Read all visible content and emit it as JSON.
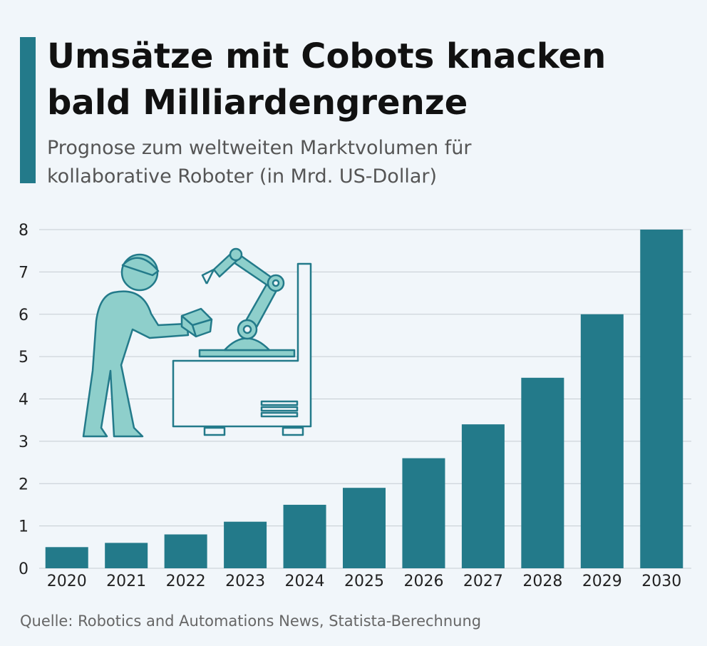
{
  "chart_data": {
    "type": "bar",
    "title": [
      "Umsätze mit Cobots knacken",
      "bald Milliardengrenze"
    ],
    "subtitle": [
      "Prognose zum weltweiten Marktvolumen für",
      "kollaborative Roboter (in Mrd. US-Dollar)"
    ],
    "source": "Quelle: Robotics and Automations News, Statista-Berechnung",
    "categories": [
      "2020",
      "2021",
      "2022",
      "2023",
      "2024",
      "2025",
      "2026",
      "2027",
      "2028",
      "2029",
      "2030"
    ],
    "values": [
      0.5,
      0.6,
      0.8,
      1.1,
      1.5,
      1.9,
      2.6,
      3.4,
      4.5,
      6,
      8
    ],
    "color": "#237a8a",
    "ylim": [
      0,
      8
    ],
    "yticks": [
      0,
      1,
      2,
      3,
      4,
      5,
      6,
      7,
      8
    ],
    "grid": true
  }
}
